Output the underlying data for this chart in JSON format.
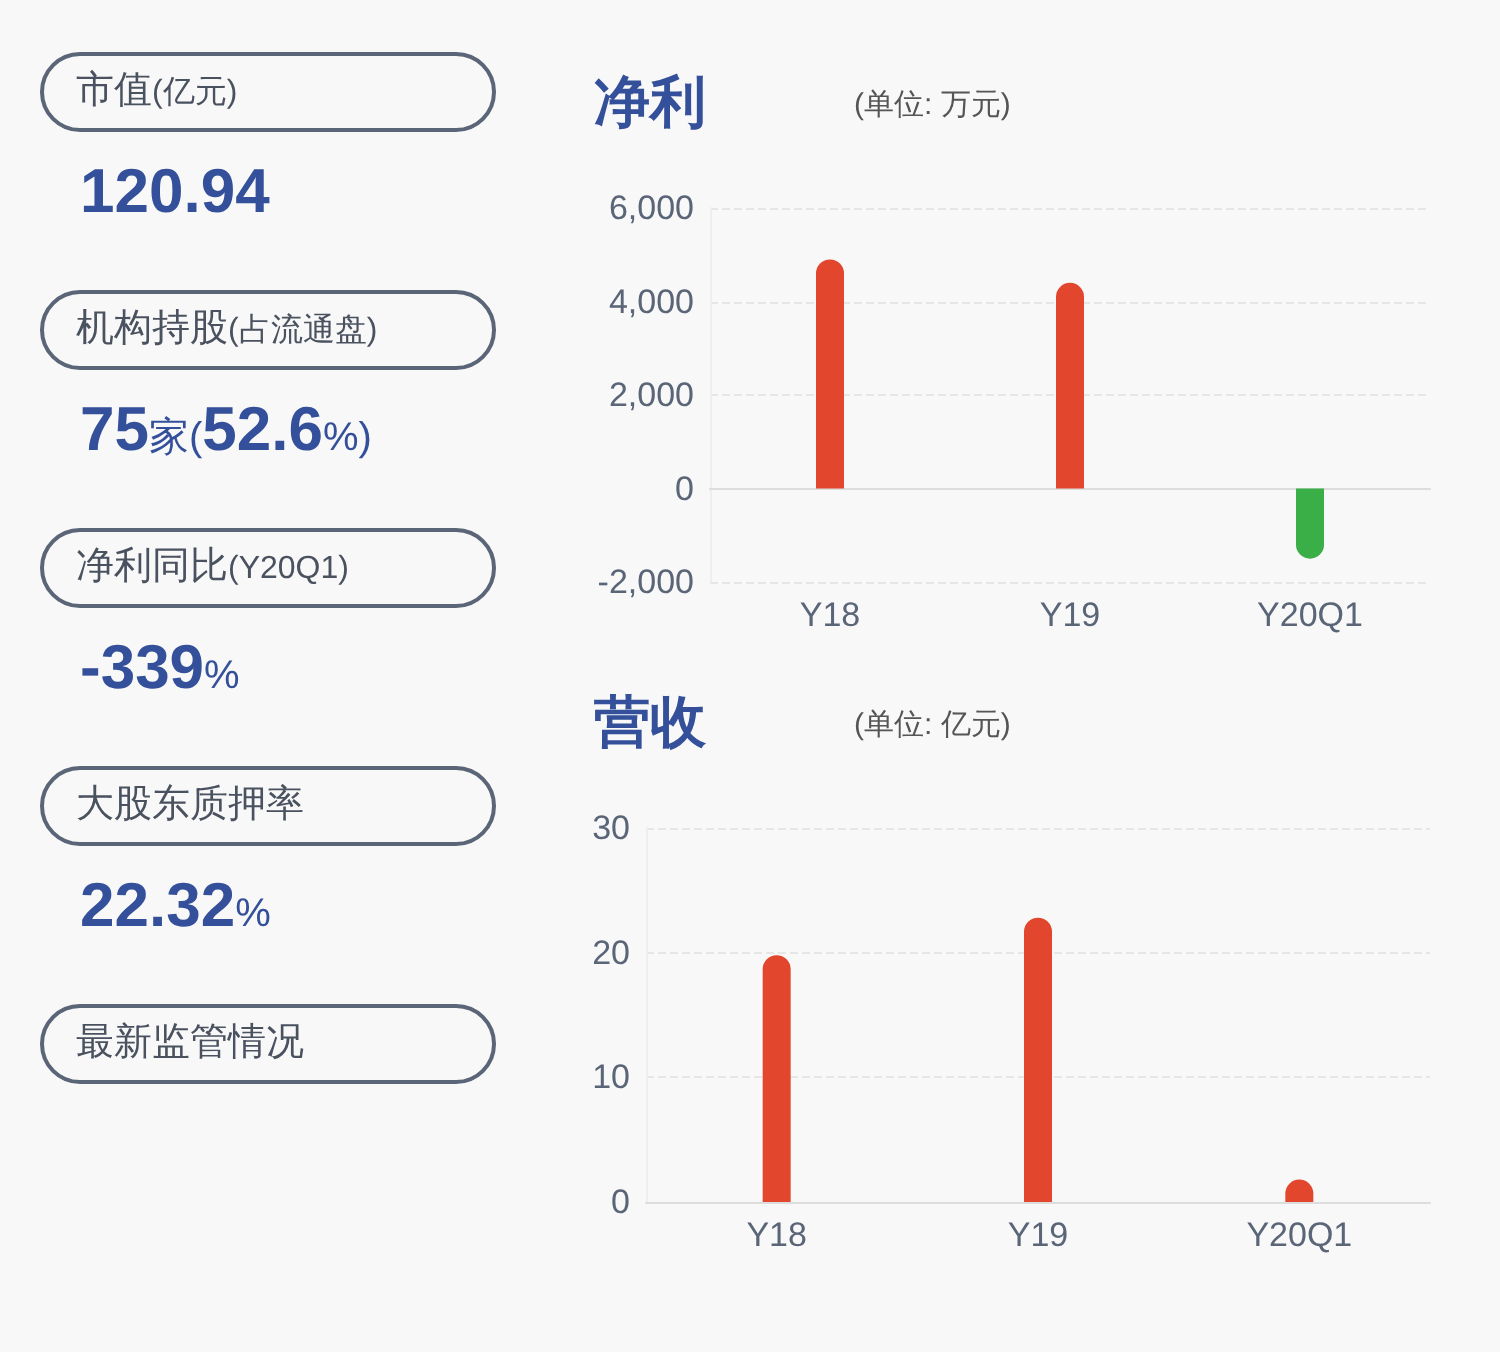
{
  "chart_data": [
    {
      "type": "other",
      "annotations": [
        "市值(亿元)",
        "120.94",
        "机构持股(占流通盘)",
        "75家(52.6%)",
        "净利同比(Y20Q1)",
        "-339%",
        "大股东质押率",
        "22.32%",
        "最新监管情况"
      ]
    },
    {
      "type": "bar",
      "title": "净利",
      "subtitle": "(单位: 万元)",
      "categories": [
        "Y18",
        "Y19",
        "Y20Q1"
      ],
      "values": [
        4900,
        4400,
        -1500
      ],
      "colors": [
        "#e2462c",
        "#e2462c",
        "#3aae47"
      ],
      "ylim": [
        -2000,
        6000
      ],
      "yticks": [
        {
          "value": -2000,
          "label": "-2,000"
        },
        0,
        {
          "value": 2000,
          "label": "2,000"
        },
        {
          "value": 4000,
          "label": "4,000"
        },
        {
          "value": 6000,
          "label": "6,000"
        }
      ],
      "grid": "y"
    },
    {
      "type": "bar",
      "title": "营收",
      "subtitle": "(单位: 亿元)",
      "categories": [
        "Y18",
        "Y19",
        "Y20Q1"
      ],
      "values": [
        19.8,
        22.8,
        1.8
      ],
      "colors": [
        "#e2462c",
        "#e2462c",
        "#e2462c"
      ],
      "ylim": [
        0,
        30
      ],
      "yticks": [
        0,
        10,
        20,
        30
      ],
      "grid": "y"
    }
  ]
}
